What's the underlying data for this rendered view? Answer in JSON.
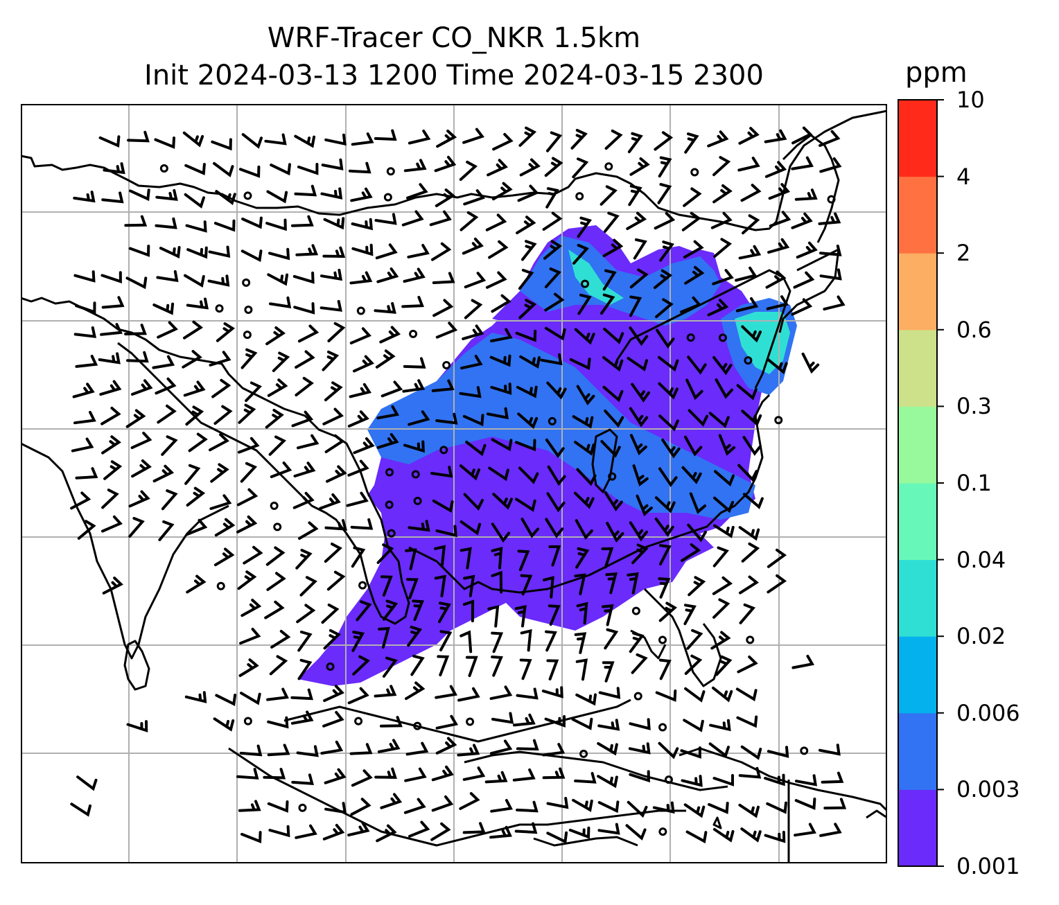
{
  "title": {
    "line1": "WRF-Tracer CO_NKR 1.5km",
    "line2": "Init 2024-03-13 1200 Time 2024-03-15 2300"
  },
  "colorbar": {
    "unit": "ppm",
    "levels": [
      {
        "label": "0.001",
        "color": "#6a2bfb"
      },
      {
        "label": "0.003",
        "color": "#3173f2"
      },
      {
        "label": "0.006",
        "color": "#05b1ec"
      },
      {
        "label": "0.02",
        "color": "#30dfd4"
      },
      {
        "label": "0.04",
        "color": "#67f8b9"
      },
      {
        "label": "0.1",
        "color": "#98f99c"
      },
      {
        "label": "0.3",
        "color": "#cde18a"
      },
      {
        "label": "0.6",
        "color": "#fcae62"
      },
      {
        "label": "2",
        "color": "#ff7140"
      },
      {
        "label": "4",
        "color": "#ff2a1a"
      },
      {
        "label": "10",
        "color": null
      }
    ]
  },
  "map": {
    "gridlines": true,
    "grid_color": "#b0b0b0",
    "coastline_color": "#000000",
    "wind_symbol": "wind-barbs",
    "calm_symbol": "calm-circle"
  }
}
